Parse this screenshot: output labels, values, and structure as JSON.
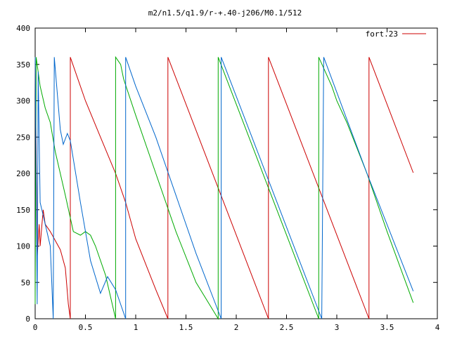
{
  "chart_data": {
    "type": "line",
    "title": "m2/n1.5/q1.9/r-+.40-j206/M0.1/512",
    "xlabel": "",
    "ylabel": "",
    "xlim": [
      0,
      4
    ],
    "ylim": [
      0,
      400
    ],
    "xticks": [
      0,
      0.5,
      1,
      1.5,
      2,
      2.5,
      3,
      3.5,
      4
    ],
    "xtick_labels": [
      "0",
      "0.5",
      "1",
      "1.5",
      "2",
      "2.5",
      "3",
      "3.5",
      "4"
    ],
    "yticks": [
      0,
      50,
      100,
      150,
      200,
      250,
      300,
      350,
      400
    ],
    "ytick_labels": [
      "0",
      "50",
      "100",
      "150",
      "200",
      "250",
      "300",
      "350",
      "400"
    ],
    "grid": false,
    "legend": {
      "position": "top-right",
      "entries": [
        "fort.23"
      ]
    },
    "series": [
      {
        "name": "fort.23",
        "color": "#cc0000",
        "points": [
          [
            0.0,
            360
          ],
          [
            0.02,
            85
          ],
          [
            0.04,
            130
          ],
          [
            0.05,
            100
          ],
          [
            0.08,
            150
          ],
          [
            0.1,
            130
          ],
          [
            0.15,
            120
          ],
          [
            0.25,
            95
          ],
          [
            0.3,
            70
          ],
          [
            0.33,
            20
          ],
          [
            0.35,
            0
          ],
          [
            0.35,
            360
          ],
          [
            0.5,
            300
          ],
          [
            0.65,
            250
          ],
          [
            0.8,
            200
          ],
          [
            0.9,
            160
          ],
          [
            1.0,
            110
          ],
          [
            1.2,
            40
          ],
          [
            1.32,
            0
          ],
          [
            1.32,
            360
          ],
          [
            1.82,
            180
          ],
          [
            2.32,
            0
          ],
          [
            2.32,
            360
          ],
          [
            2.82,
            180
          ],
          [
            3.32,
            0
          ],
          [
            3.32,
            360
          ],
          [
            3.76,
            201
          ]
        ]
      },
      {
        "name": "",
        "color": "#00aa00",
        "points": [
          [
            0.0,
            20
          ],
          [
            0.01,
            360
          ],
          [
            0.05,
            320
          ],
          [
            0.1,
            290
          ],
          [
            0.15,
            270
          ],
          [
            0.2,
            230
          ],
          [
            0.3,
            170
          ],
          [
            0.38,
            120
          ],
          [
            0.45,
            115
          ],
          [
            0.5,
            120
          ],
          [
            0.55,
            115
          ],
          [
            0.6,
            100
          ],
          [
            0.7,
            60
          ],
          [
            0.8,
            0
          ],
          [
            0.8,
            360
          ],
          [
            0.85,
            350
          ],
          [
            0.88,
            330
          ],
          [
            1.0,
            280
          ],
          [
            1.2,
            200
          ],
          [
            1.4,
            120
          ],
          [
            1.6,
            50
          ],
          [
            1.82,
            0
          ],
          [
            1.82,
            360
          ],
          [
            2.32,
            180
          ],
          [
            2.82,
            0
          ],
          [
            2.82,
            360
          ],
          [
            2.95,
            320
          ],
          [
            3.0,
            300
          ],
          [
            3.1,
            270
          ],
          [
            3.3,
            200
          ],
          [
            3.5,
            120
          ],
          [
            3.76,
            22
          ]
        ]
      },
      {
        "name": "",
        "color": "#0066cc",
        "points": [
          [
            0.0,
            360
          ],
          [
            0.02,
            20
          ],
          [
            0.03,
            340
          ],
          [
            0.05,
            160
          ],
          [
            0.1,
            130
          ],
          [
            0.15,
            100
          ],
          [
            0.18,
            0
          ],
          [
            0.19,
            360
          ],
          [
            0.25,
            260
          ],
          [
            0.28,
            240
          ],
          [
            0.32,
            255
          ],
          [
            0.35,
            245
          ],
          [
            0.45,
            160
          ],
          [
            0.55,
            80
          ],
          [
            0.65,
            35
          ],
          [
            0.72,
            58
          ],
          [
            0.8,
            40
          ],
          [
            0.9,
            0
          ],
          [
            0.9,
            360
          ],
          [
            1.0,
            320
          ],
          [
            1.2,
            250
          ],
          [
            1.4,
            170
          ],
          [
            1.6,
            90
          ],
          [
            1.85,
            0
          ],
          [
            1.85,
            360
          ],
          [
            2.35,
            180
          ],
          [
            2.85,
            0
          ],
          [
            2.87,
            360
          ],
          [
            3.3,
            200
          ],
          [
            3.76,
            38
          ]
        ]
      }
    ]
  }
}
